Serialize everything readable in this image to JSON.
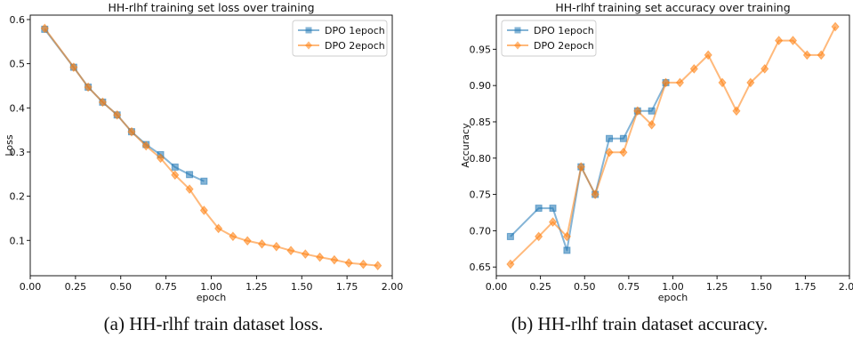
{
  "figure": {
    "captions": [
      "(a) HH-rlhf train dataset loss.",
      "(b) HH-rlhf train dataset accuracy."
    ]
  },
  "chart_data": [
    {
      "type": "line",
      "title": "HH-rlhf training set loss over training",
      "xlabel": "epoch",
      "ylabel": "Loss",
      "xlim": [
        0.0,
        2.0
      ],
      "ylim": [
        0.02,
        0.61
      ],
      "xticks": [
        "0.00",
        "0.25",
        "0.50",
        "0.75",
        "1.00",
        "1.25",
        "1.50",
        "1.75",
        "2.00"
      ],
      "yticks": [
        "0.1",
        "0.2",
        "0.3",
        "0.4",
        "0.5",
        "0.6"
      ],
      "grid": false,
      "legend": "top-right",
      "series": [
        {
          "name": "DPO 1epoch",
          "color": "#1f77b4",
          "marker": "square",
          "x": [
            0.08,
            0.24,
            0.32,
            0.4,
            0.48,
            0.56,
            0.64,
            0.72,
            0.8,
            0.88,
            0.96
          ],
          "y": [
            0.578,
            0.492,
            0.447,
            0.413,
            0.384,
            0.346,
            0.317,
            0.294,
            0.266,
            0.249,
            0.234
          ]
        },
        {
          "name": "DPO 2epoch",
          "color": "#ff7f0e",
          "marker": "diamond",
          "x": [
            0.08,
            0.24,
            0.32,
            0.4,
            0.48,
            0.56,
            0.64,
            0.72,
            0.8,
            0.88,
            0.96,
            1.04,
            1.12,
            1.2,
            1.28,
            1.36,
            1.44,
            1.52,
            1.6,
            1.68,
            1.76,
            1.84,
            1.92
          ],
          "y": [
            0.58,
            0.492,
            0.447,
            0.413,
            0.384,
            0.346,
            0.314,
            0.286,
            0.248,
            0.216,
            0.168,
            0.127,
            0.109,
            0.099,
            0.092,
            0.086,
            0.077,
            0.069,
            0.062,
            0.056,
            0.049,
            0.046,
            0.043
          ]
        }
      ]
    },
    {
      "type": "line",
      "title": "HH-rlhf training set accuracy over training",
      "xlabel": "epoch",
      "ylabel": "Accuracy",
      "xlim": [
        0.0,
        2.0
      ],
      "ylim": [
        0.638,
        0.997
      ],
      "xticks": [
        "0.00",
        "0.25",
        "0.50",
        "0.75",
        "1.00",
        "1.25",
        "1.50",
        "1.75",
        "2.00"
      ],
      "yticks": [
        "0.65",
        "0.70",
        "0.75",
        "0.80",
        "0.85",
        "0.90",
        "0.95"
      ],
      "grid": false,
      "legend": "top-left",
      "series": [
        {
          "name": "DPO 1epoch",
          "color": "#1f77b4",
          "marker": "square",
          "x": [
            0.08,
            0.24,
            0.32,
            0.4,
            0.48,
            0.56,
            0.64,
            0.72,
            0.8,
            0.88,
            0.96
          ],
          "y": [
            0.692,
            0.731,
            0.731,
            0.673,
            0.788,
            0.75,
            0.827,
            0.827,
            0.865,
            0.865,
            0.904
          ]
        },
        {
          "name": "DPO 2epoch",
          "color": "#ff7f0e",
          "marker": "diamond",
          "x": [
            0.08,
            0.24,
            0.32,
            0.4,
            0.48,
            0.56,
            0.64,
            0.72,
            0.8,
            0.88,
            0.96,
            1.04,
            1.12,
            1.2,
            1.28,
            1.36,
            1.44,
            1.52,
            1.6,
            1.68,
            1.76,
            1.84,
            1.92
          ],
          "y": [
            0.654,
            0.692,
            0.712,
            0.692,
            0.788,
            0.75,
            0.808,
            0.808,
            0.865,
            0.846,
            0.904,
            0.904,
            0.923,
            0.942,
            0.904,
            0.865,
            0.904,
            0.923,
            0.962,
            0.962,
            0.942,
            0.942,
            0.981
          ]
        }
      ]
    }
  ]
}
